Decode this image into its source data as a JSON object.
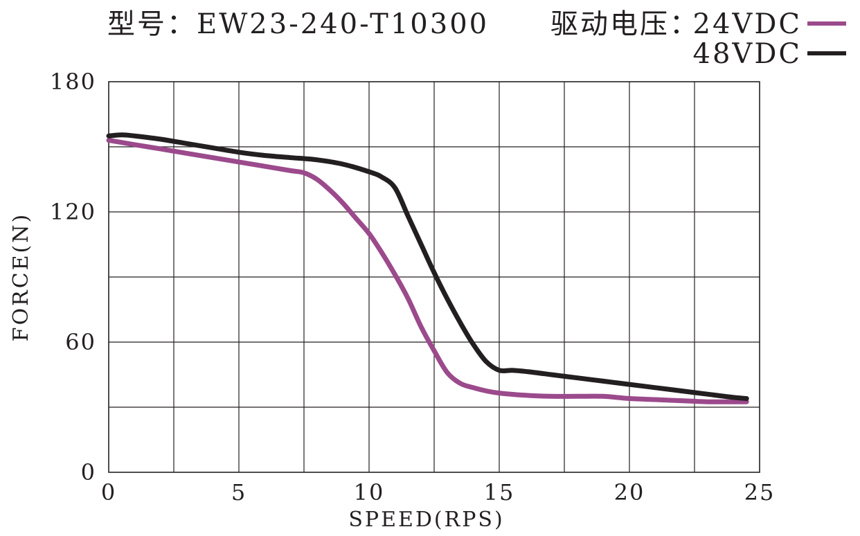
{
  "chart_data": {
    "type": "line",
    "title": "型号：EW23-240-T10300",
    "legend_title": "驱动电压：",
    "xlabel": "SPEED(RPS)",
    "ylabel": "FORCE(N)",
    "xlim": [
      0,
      25
    ],
    "ylim": [
      0,
      180
    ],
    "x_grid_step": 2.5,
    "y_grid_step": 30,
    "x_tick_values": [
      0,
      5,
      10,
      15,
      20,
      25
    ],
    "x_tick_labels": [
      "0",
      "5",
      "10",
      "15",
      "20",
      "25"
    ],
    "y_tick_values": [
      0,
      60,
      120,
      180
    ],
    "y_tick_labels": [
      "0",
      "60",
      "120",
      "180"
    ],
    "grid": true,
    "legend_position": "top-right",
    "series": [
      {
        "name": "24VDC",
        "color": "#9b4a8c",
        "x": [
          0,
          0.5,
          1,
          2,
          3,
          4,
          5,
          6,
          7,
          7.5,
          8,
          8.5,
          9,
          9.5,
          10,
          10.5,
          11,
          11.5,
          12,
          12.5,
          13,
          13.5,
          14,
          14.5,
          15,
          16,
          17,
          18,
          19,
          20,
          21,
          22,
          23,
          24,
          24.5
        ],
        "y": [
          153,
          152,
          151,
          149,
          147,
          145,
          143,
          141,
          139,
          138,
          135,
          130,
          124,
          117,
          110,
          101,
          91,
          80,
          67,
          56,
          46,
          41,
          39,
          37.5,
          36.5,
          35.5,
          35,
          35,
          35,
          34,
          33.5,
          33,
          32.5,
          32.5,
          32.5
        ]
      },
      {
        "name": "48VDC",
        "color": "#231f20",
        "x": [
          0,
          0.5,
          1,
          2,
          3,
          4,
          5,
          6,
          7,
          8,
          9,
          10,
          10.5,
          11,
          11.5,
          12,
          12.5,
          13,
          13.5,
          14,
          14.5,
          15,
          15.5,
          16,
          17,
          18,
          19,
          20,
          21,
          22,
          23,
          24,
          24.5
        ],
        "y": [
          155,
          155.5,
          155,
          153.5,
          151.5,
          149.5,
          147.5,
          146,
          145,
          144,
          142,
          138.5,
          136,
          131,
          118,
          105,
          92,
          80,
          69,
          59,
          51,
          47,
          47,
          46.5,
          45,
          43.5,
          42,
          40.5,
          39,
          37.5,
          36,
          34.5,
          34
        ]
      }
    ]
  }
}
